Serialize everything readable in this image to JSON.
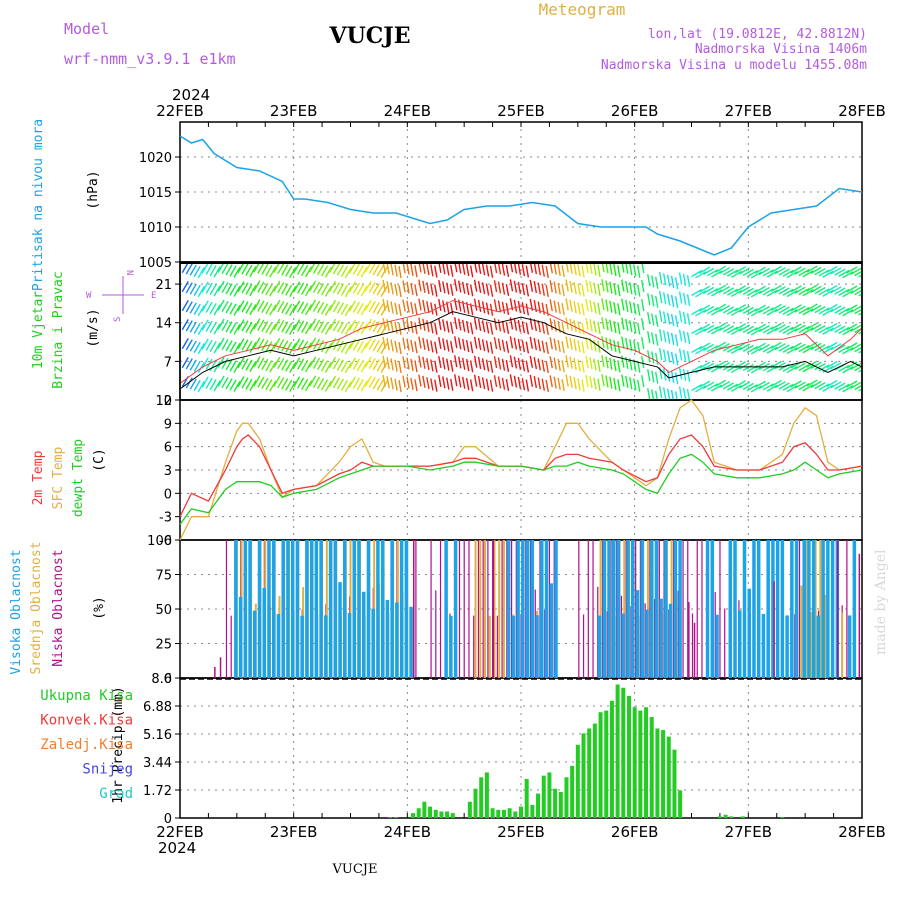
{
  "header": {
    "model_label": "Model",
    "model_name": "wrf-nmm_v3.9.1 e1km",
    "title": "VUCJE",
    "meteogram_label": "Meteogram",
    "coords": "lon,lat (19.0812E, 42.8812N)",
    "elevation": "Nadmorska Visina 1406m",
    "model_elevation": "Nadmorska Visina u modelu 1455.08m",
    "year_top": "2024",
    "year_bottom": "2024",
    "footer_title": "VUCJE",
    "credit": "made by Angel"
  },
  "colors": {
    "pressure": "#1ca3e8",
    "temp2m": "#f03a3a",
    "sfc": "#e0b040",
    "dewpt": "#22cc22",
    "precip": "#22cc22",
    "cloud_high": "#1ca3e8",
    "cloud_mid": "#e0b040",
    "cloud_low": "#b0108a",
    "purple_text": "#b45be0"
  },
  "days": [
    "22FEB",
    "23FEB",
    "24FEB",
    "25FEB",
    "26FEB",
    "27FEB",
    "28FEB"
  ],
  "panels": {
    "pressure": {
      "label": "Pritisak na nivou mora",
      "unit": "(hPa)"
    },
    "wind": {
      "label1": "10m Vjetar",
      "label2": "Brzina i Pravac",
      "unit": "(m/s)",
      "compass_n": "N",
      "compass_s": "S",
      "compass_w": "W",
      "compass_e": "E"
    },
    "temp": {
      "label1": "2m Temp",
      "label2": "SFC Temp",
      "label3": "dewpt Temp",
      "unit": "(C)"
    },
    "cloud": {
      "label1": "Visoka Oblacnost",
      "label2": "Srednja Oblacnost",
      "label3": "Niska Oblacnost",
      "unit": "(%)"
    },
    "precip": {
      "legend": [
        "Ukupna Kisa",
        "Konvek.Kisa",
        "Zaledj.Kisa",
        "Snijeg",
        "Grad"
      ],
      "legend_colors": [
        "#22cc22",
        "#f03a3a",
        "#f08030",
        "#4444dd",
        "#22c8c8"
      ],
      "unit": "1hr Precip (mm)"
    }
  },
  "chart_data": [
    {
      "type": "line",
      "title": "Pritisak na nivou mora",
      "ylabel": "(hPa)",
      "x_days": [
        0,
        0.1,
        0.2,
        0.3,
        0.5,
        0.7,
        0.9,
        1.0,
        1.1,
        1.3,
        1.5,
        1.7,
        1.9,
        2.1,
        2.2,
        2.35,
        2.5,
        2.7,
        2.9,
        3.1,
        3.3,
        3.5,
        3.7,
        3.9,
        4.1,
        4.2,
        4.4,
        4.55,
        4.7,
        4.85,
        5.0,
        5.2,
        5.4,
        5.6,
        5.8,
        6.0
      ],
      "values": [
        1023,
        1022,
        1022.5,
        1020.5,
        1018.5,
        1018,
        1016.5,
        1014,
        1014,
        1013.5,
        1012.5,
        1012,
        1012,
        1011,
        1010.5,
        1011,
        1012.5,
        1013,
        1013,
        1013.5,
        1013,
        1010.5,
        1010,
        1010,
        1010,
        1009,
        1008,
        1007,
        1006,
        1007,
        1010,
        1012,
        1012.5,
        1013,
        1015.5,
        1015
      ],
      "yticks": [
        1005,
        1010,
        1015,
        1020
      ],
      "ylim": [
        1005,
        1025
      ]
    },
    {
      "type": "line",
      "title": "10m Vjetar Brzina i Pravac",
      "ylabel": "(m/s)",
      "x_days": [
        0,
        0.2,
        0.4,
        0.6,
        0.8,
        1.0,
        1.2,
        1.4,
        1.6,
        1.8,
        2.0,
        2.2,
        2.4,
        2.6,
        2.8,
        3.0,
        3.2,
        3.4,
        3.6,
        3.8,
        4.0,
        4.2,
        4.3,
        4.5,
        4.7,
        4.9,
        5.1,
        5.3,
        5.5,
        5.7,
        5.9,
        6.0
      ],
      "speed": [
        2,
        5,
        7,
        8,
        9,
        8,
        9,
        10,
        11,
        12,
        13,
        14,
        16,
        15,
        14,
        15,
        14,
        12,
        11,
        8,
        7,
        6,
        4,
        5,
        6,
        6,
        6,
        6,
        7,
        5,
        7,
        6
      ],
      "gust": [
        3,
        6,
        8,
        9,
        10,
        9,
        10,
        11,
        13,
        14,
        15,
        16,
        18,
        17,
        16,
        17,
        16,
        14,
        12,
        10,
        9,
        7,
        5,
        7,
        9,
        10,
        11,
        11,
        12,
        8,
        11,
        13
      ],
      "yticks": [
        0,
        7,
        14,
        21
      ],
      "ylim": [
        0,
        25
      ]
    },
    {
      "type": "line",
      "title": "2m Temp / SFC Temp / dewpt Temp",
      "ylabel": "(C)",
      "x_days": [
        0,
        0.1,
        0.25,
        0.4,
        0.5,
        0.55,
        0.6,
        0.7,
        0.8,
        0.9,
        1.0,
        1.2,
        1.4,
        1.5,
        1.6,
        1.7,
        1.8,
        2.0,
        2.2,
        2.4,
        2.5,
        2.6,
        2.8,
        3.0,
        3.2,
        3.3,
        3.4,
        3.5,
        3.6,
        3.8,
        3.9,
        4.1,
        4.2,
        4.3,
        4.4,
        4.5,
        4.6,
        4.7,
        4.9,
        5.1,
        5.3,
        5.4,
        5.5,
        5.6,
        5.7,
        5.8,
        6.0
      ],
      "series": [
        {
          "name": "2m Temp",
          "values": [
            -3,
            0,
            -1,
            3,
            6,
            7,
            7.5,
            6,
            3,
            0,
            0.5,
            1,
            2.5,
            3,
            4,
            3.5,
            3.5,
            3.5,
            3.5,
            4,
            4.5,
            4.5,
            3.5,
            3.5,
            3,
            4.5,
            5,
            5,
            4.5,
            4,
            3,
            1.5,
            2,
            5,
            7,
            7.5,
            6,
            3.5,
            3,
            3,
            4,
            6,
            6.5,
            5,
            3,
            3,
            3.5
          ]
        },
        {
          "name": "SFC Temp",
          "values": [
            -6,
            -3,
            -3,
            4,
            8,
            9,
            9,
            7,
            3,
            -0.5,
            0.5,
            1,
            4,
            6,
            7,
            4,
            3.5,
            3.5,
            3.5,
            4,
            6,
            6,
            3.5,
            3.5,
            3,
            6,
            9,
            9,
            7,
            4,
            3,
            1,
            2,
            7,
            11,
            12,
            10,
            4,
            3,
            3,
            5,
            9,
            11,
            10,
            4,
            3,
            3.5
          ]
        },
        {
          "name": "dewpt Temp",
          "values": [
            -4,
            -2,
            -2.5,
            0.5,
            1.5,
            1.5,
            1.5,
            1.5,
            1,
            -0.5,
            0,
            0.5,
            2,
            2.5,
            3,
            3.5,
            3.5,
            3.5,
            3,
            3.5,
            4,
            4,
            3.5,
            3.5,
            3,
            3.5,
            3.5,
            4,
            3.5,
            3,
            2.5,
            0.5,
            0,
            2.5,
            4.5,
            5,
            4,
            2.5,
            2,
            2,
            2.5,
            3,
            4,
            3,
            2,
            2.5,
            3
          ]
        }
      ],
      "yticks": [
        -6,
        -3,
        0,
        3,
        6,
        9,
        12
      ],
      "ylim": [
        -6,
        12
      ]
    },
    {
      "type": "bar",
      "title": "Visoka / Srednja / Niska Oblacnost",
      "ylabel": "(%)",
      "yticks": [
        0,
        25,
        50,
        75,
        100
      ],
      "ylim": [
        0,
        100
      ],
      "series": [
        {
          "name": "Visoka Oblacnost",
          "ranges_days": [
            [
              0.5,
              2.05
            ],
            [
              2.35,
              2.45
            ],
            [
              2.9,
              3.35
            ],
            [
              3.7,
              4.45
            ],
            [
              4.65,
              4.75
            ],
            [
              4.85,
              5.45
            ],
            [
              5.5,
              5.8
            ],
            [
              5.9,
              5.98
            ]
          ],
          "value": 100
        },
        {
          "name": "Srednja Oblacnost",
          "ranges_days": [
            [
              0.5,
              2.05
            ],
            [
              2.6,
              3.3
            ],
            [
              3.7,
              4.4
            ],
            [
              5.3,
              5.7
            ],
            [
              5.7,
              5.85
            ]
          ],
          "value": 100
        },
        {
          "name": "Niska Oblacnost",
          "ranges_days": [
            [
              0.4,
              2.1
            ],
            [
              2.2,
              3.3
            ],
            [
              3.5,
              4.6
            ],
            [
              4.7,
              5.1
            ],
            [
              5.4,
              5.9
            ]
          ],
          "value": 100
        }
      ]
    },
    {
      "type": "bar",
      "title": "1hr Precip",
      "ylabel": "1hr Precip (mm)",
      "yticks": [
        0,
        1.72,
        3.44,
        5.16,
        6.88,
        8.6
      ],
      "ylim": [
        0,
        8.6
      ],
      "x_days": [
        1.85,
        1.9,
        2.05,
        2.1,
        2.15,
        2.2,
        2.25,
        2.3,
        2.35,
        2.4,
        2.55,
        2.6,
        2.65,
        2.7,
        2.75,
        2.8,
        2.85,
        2.9,
        2.95,
        3.0,
        3.05,
        3.1,
        3.15,
        3.2,
        3.25,
        3.3,
        3.35,
        3.4,
        3.45,
        3.5,
        3.55,
        3.6,
        3.65,
        3.7,
        3.75,
        3.8,
        3.85,
        3.9,
        3.95,
        4.0,
        4.05,
        4.1,
        4.15,
        4.2,
        4.25,
        4.3,
        4.35,
        4.4,
        4.75,
        4.8,
        4.85,
        4.95,
        5.3
      ],
      "values": [
        0.05,
        0.05,
        0.3,
        0.6,
        1.0,
        0.7,
        0.5,
        0.4,
        0.4,
        0.3,
        1.0,
        1.8,
        2.5,
        2.8,
        0.6,
        0.5,
        0.5,
        0.6,
        0.4,
        0.7,
        2.4,
        0.8,
        1.5,
        2.6,
        2.8,
        1.8,
        1.6,
        2.5,
        3.2,
        4.5,
        5.2,
        5.5,
        5.8,
        6.5,
        6.6,
        7.2,
        8.2,
        8.0,
        7.5,
        6.8,
        6.6,
        6.8,
        6.2,
        5.5,
        5.4,
        5.0,
        4.2,
        1.7,
        0.1,
        0.2,
        0.1,
        0.1,
        0.05
      ]
    }
  ]
}
